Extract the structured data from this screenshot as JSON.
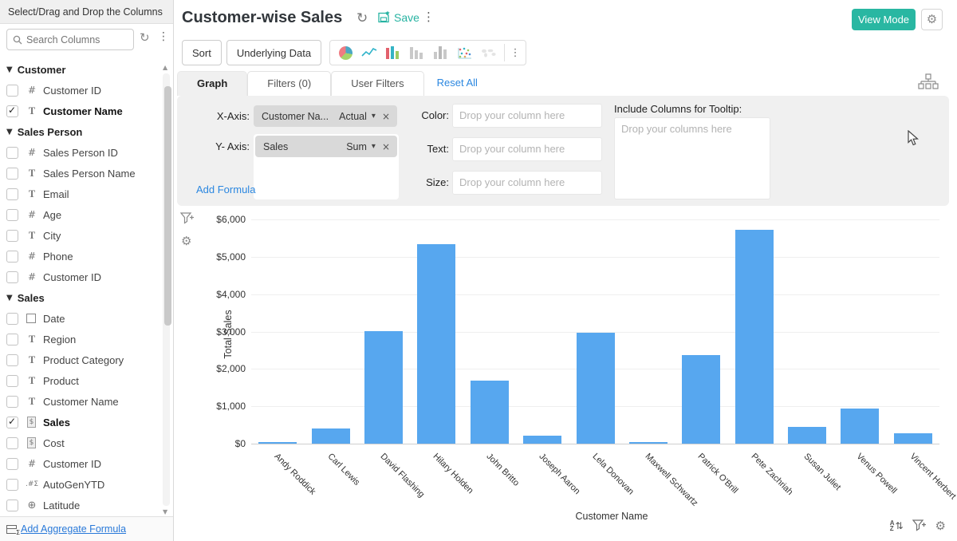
{
  "accent": {
    "teal": "#29b7a2",
    "link_blue": "#2b87e0",
    "bar_blue": "#57a7ef"
  },
  "sidebar": {
    "header": "Select/Drag and Drop the Columns",
    "search_placeholder": "Search Columns",
    "footer_link": "Add Aggregate Formula",
    "groups": [
      {
        "label": "Customer",
        "items": [
          {
            "label": "Customer ID",
            "type": "number",
            "checked": false
          },
          {
            "label": "Customer Name",
            "type": "text",
            "checked": true
          }
        ]
      },
      {
        "label": "Sales Person",
        "items": [
          {
            "label": "Sales Person ID",
            "type": "number",
            "checked": false
          },
          {
            "label": "Sales Person Name",
            "type": "text",
            "checked": false
          },
          {
            "label": "Email",
            "type": "text",
            "checked": false
          },
          {
            "label": "Age",
            "type": "number",
            "checked": false
          },
          {
            "label": "City",
            "type": "text",
            "checked": false
          },
          {
            "label": "Phone",
            "type": "number",
            "checked": false
          },
          {
            "label": "Customer ID",
            "type": "number",
            "checked": false
          }
        ]
      },
      {
        "label": "Sales",
        "items": [
          {
            "label": "Date",
            "type": "date",
            "checked": false
          },
          {
            "label": "Region",
            "type": "text",
            "checked": false
          },
          {
            "label": "Product Category",
            "type": "text",
            "checked": false
          },
          {
            "label": "Product",
            "type": "text",
            "checked": false
          },
          {
            "label": "Customer Name",
            "type": "text",
            "checked": false
          },
          {
            "label": "Sales",
            "type": "currency",
            "checked": true
          },
          {
            "label": "Cost",
            "type": "currency",
            "checked": false
          },
          {
            "label": "Customer ID",
            "type": "number",
            "checked": false
          },
          {
            "label": "AutoGenYTD",
            "type": "formula",
            "checked": false
          },
          {
            "label": "Latitude",
            "type": "geo",
            "checked": false
          }
        ]
      }
    ],
    "icons": {
      "search": "magnifier",
      "refresh": "circular-arrow",
      "menu": "kebab",
      "scroll_up": "triangle-up",
      "scroll_down": "triangle-down",
      "footer": "table-sigma"
    }
  },
  "header": {
    "title": "Customer-wise Sales",
    "save_label": "Save",
    "view_mode_label": "View Mode",
    "icons": {
      "refresh": "circular-arrow",
      "save": "floppy-star",
      "menu": "kebab",
      "settings": "gear"
    }
  },
  "toolbar": {
    "sort": "Sort",
    "underlying_data": "Underlying Data",
    "chart_type_icons": [
      "pie-chart",
      "line-chart",
      "bar-chart-colored",
      "bar-chart-gray",
      "grouped-bar-gray",
      "scatter-plot",
      "world-map",
      "more-kebab"
    ]
  },
  "tabs": {
    "graph": "Graph",
    "filters": "Filters (0)",
    "user_filters": "User Filters",
    "reset_all": "Reset All",
    "right_icon": "sitemap"
  },
  "config": {
    "x_axis_label": "X-Axis:",
    "x_axis_field": "Customer Na...",
    "x_axis_mode": "Actual",
    "y_axis_label": "Y- Axis:",
    "y_axis_field": "Sales",
    "y_axis_mode": "Sum",
    "add_formula": "Add Formula",
    "color_label": "Color:",
    "text_label": "Text:",
    "size_label": "Size:",
    "drop_placeholder": "Drop your column here",
    "tooltip_label": "Include Columns for Tooltip:",
    "tooltip_placeholder": "Drop your columns here"
  },
  "chart_tools": {
    "left": [
      "funnel-plus",
      "gear"
    ],
    "bottom_right": [
      "sort-az",
      "funnel-plus",
      "gear"
    ]
  },
  "chart_data": {
    "type": "bar",
    "title": "",
    "xlabel": "Customer Name",
    "ylabel": "Total Sales",
    "ylim": [
      0,
      6000
    ],
    "grid": true,
    "legend": "none",
    "bar_color": "#57a7ef",
    "ytick_labels": [
      "$0",
      "$1,000",
      "$2,000",
      "$3,000",
      "$4,000",
      "$5,000",
      "$6,000"
    ],
    "categories": [
      "Andy Roddick",
      "Carl Lewis",
      "David Flashing",
      "Hilary Holden",
      "John Britto",
      "Joseph Aaron",
      "Lela Donovan",
      "Maxwell Schwartz",
      "Patrick O'Brill",
      "Pete Zachriah",
      "Susan Juliet",
      "Venus Powell",
      "Vincent Herbert"
    ],
    "values": [
      40,
      400,
      3020,
      5330,
      1680,
      215,
      2960,
      40,
      2380,
      5730,
      440,
      950,
      270
    ]
  }
}
